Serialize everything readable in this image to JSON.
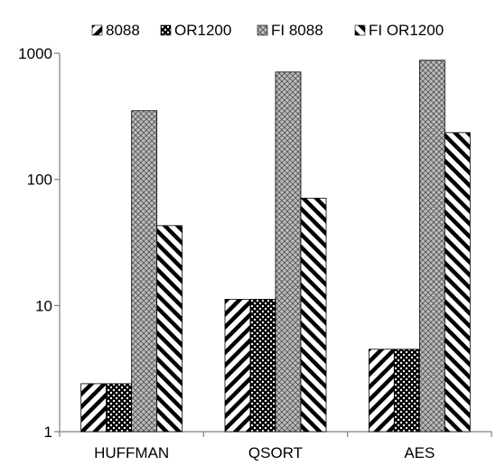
{
  "chart_data": {
    "type": "bar",
    "title": "",
    "xlabel": "",
    "ylabel": "",
    "yscale": "log",
    "ylim": [
      1,
      1000
    ],
    "yticks": [
      1,
      10,
      100,
      1000
    ],
    "ytick_labels": [
      "1",
      "10",
      "100",
      "1000"
    ],
    "grid": false,
    "legend_position": "top",
    "categories": [
      "HUFFMAN",
      "QSORT",
      "AES"
    ],
    "series": [
      {
        "name": "8088",
        "pattern": "diagonal-down",
        "values": [
          2.4,
          11.2,
          4.5
        ]
      },
      {
        "name": "OR1200",
        "pattern": "dense-checker",
        "values": [
          2.4,
          11.2,
          4.5
        ]
      },
      {
        "name": "FI 8088",
        "pattern": "light-crosshatch",
        "values": [
          350,
          710,
          880
        ]
      },
      {
        "name": "FI OR1200",
        "pattern": "diagonal-up",
        "values": [
          43,
          71,
          235
        ]
      }
    ]
  }
}
